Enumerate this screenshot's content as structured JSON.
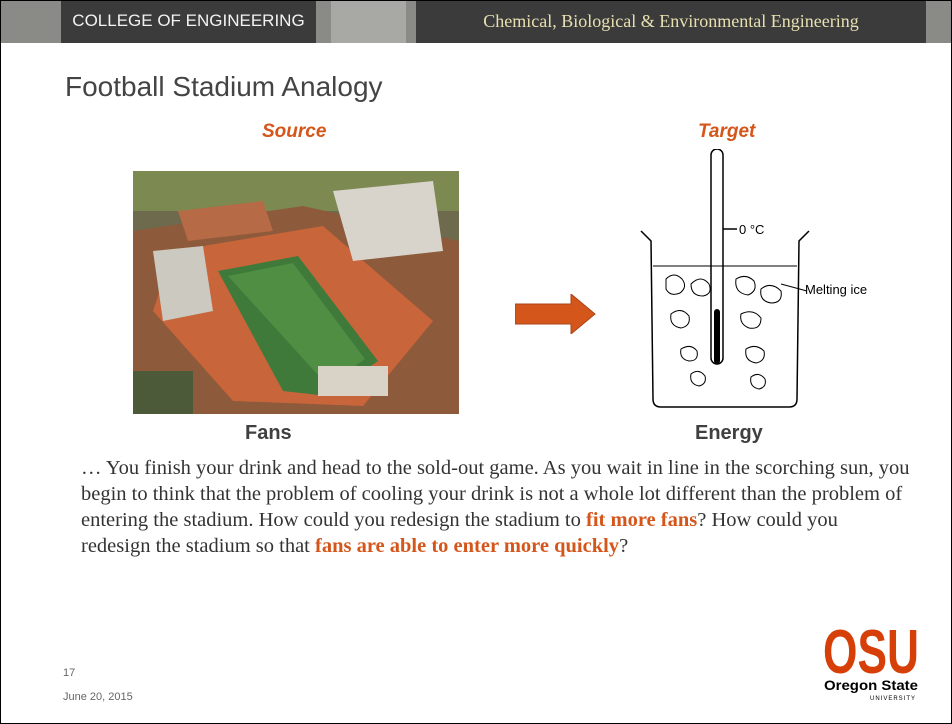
{
  "header": {
    "left": "COLLEGE OF ENGINEERING",
    "right": "Chemical, Biological & Environmental Engineering"
  },
  "title": "Football Stadium Analogy",
  "source_label": "Source",
  "target_label": "Target",
  "fans_label": "Fans",
  "energy_label": "Energy",
  "diagram": {
    "temperature": "0 °C",
    "ice": "Melting ice"
  },
  "paragraph": [
    {
      "text": "… You finish your drink and head to the sold-out game.  As you wait in line in the scorching sun, you begin to think that the problem of cooling your drink is not a whole lot different than the problem of entering the stadium. How could you redesign the stadium to ",
      "emphasis": false
    },
    {
      "text": "fit more fans",
      "emphasis": true
    },
    {
      "text": "? How could you redesign the stadium so that ",
      "emphasis": false
    },
    {
      "text": "fans are able to enter more quickly",
      "emphasis": true
    },
    {
      "text": "?",
      "emphasis": false
    }
  ],
  "footer": {
    "page": "17",
    "date": "June 20, 2015"
  },
  "logo": {
    "mark": "OSU",
    "name": "Oregon State",
    "sub": "UNIVERSITY"
  }
}
